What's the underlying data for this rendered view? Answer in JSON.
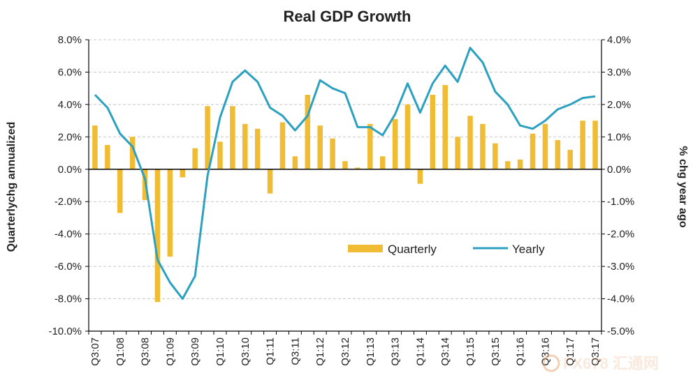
{
  "chart_data": {
    "type": "bar+line",
    "title": "Real GDP Growth",
    "ylabel_left": "Quarterlychg annualized",
    "ylabel_right": "% chg year ago",
    "ylim_left": [
      -10,
      8
    ],
    "ylim_right": [
      -5,
      4
    ],
    "yticks_left": [
      "8.0%",
      "6.0%",
      "4.0%",
      "2.0%",
      "0.0%",
      "-2.0%",
      "-4.0%",
      "-6.0%",
      "-8.0%",
      "-10.0%"
    ],
    "yticks_right": [
      "4.0%",
      "3.0%",
      "2.0%",
      "1.0%",
      "0.0%",
      "-1.0%",
      "-2.0%",
      "-3.0%",
      "-4.0%",
      "-5.0%"
    ],
    "x_tick_labels": [
      "Q3:07",
      "Q1:08",
      "Q3:08",
      "Q1:09",
      "Q3:09",
      "Q1:10",
      "Q3:10",
      "Q1:11",
      "Q3:11",
      "Q1:12",
      "Q3:12",
      "Q1:13",
      "Q3:13",
      "Q1:14",
      "Q3:14",
      "Q1:15",
      "Q3:15",
      "Q1:16",
      "Q3:16",
      "Q1:17",
      "Q3:17"
    ],
    "categories": [
      "Q3:07",
      "Q4:07",
      "Q1:08",
      "Q2:08",
      "Q3:08",
      "Q4:08",
      "Q1:09",
      "Q2:09",
      "Q3:09",
      "Q4:09",
      "Q1:10",
      "Q2:10",
      "Q3:10",
      "Q4:10",
      "Q1:11",
      "Q2:11",
      "Q3:11",
      "Q4:11",
      "Q1:12",
      "Q2:12",
      "Q3:12",
      "Q4:12",
      "Q1:13",
      "Q2:13",
      "Q3:13",
      "Q4:13",
      "Q1:14",
      "Q2:14",
      "Q3:14",
      "Q4:14",
      "Q1:15",
      "Q2:15",
      "Q3:15",
      "Q4:15",
      "Q1:16",
      "Q2:16",
      "Q3:16",
      "Q4:16",
      "Q1:17",
      "Q2:17",
      "Q3:17"
    ],
    "series": [
      {
        "name": "Quarterly",
        "type": "bar",
        "axis": "left",
        "color": "#f0bc33",
        "values": [
          2.7,
          1.5,
          -2.7,
          2.0,
          -1.9,
          -8.2,
          -5.4,
          -0.5,
          1.3,
          3.9,
          1.7,
          3.9,
          2.8,
          2.5,
          -1.5,
          2.9,
          0.8,
          4.6,
          2.7,
          1.9,
          0.5,
          0.1,
          2.8,
          0.8,
          3.1,
          4.0,
          -0.9,
          4.6,
          5.2,
          2.0,
          3.3,
          2.8,
          1.6,
          0.5,
          0.6,
          2.2,
          2.8,
          1.8,
          1.2,
          3.0,
          3.0
        ]
      },
      {
        "name": "Yearly",
        "type": "line",
        "axis": "right",
        "color": "#2ba0c0",
        "values": [
          2.3,
          1.9,
          1.1,
          0.7,
          -0.3,
          -2.8,
          -3.5,
          -4.0,
          -3.3,
          -0.2,
          1.6,
          2.7,
          3.05,
          2.7,
          1.9,
          1.65,
          1.2,
          1.65,
          2.75,
          2.5,
          2.35,
          1.3,
          1.3,
          1.05,
          1.7,
          2.65,
          1.75,
          2.65,
          3.2,
          2.7,
          3.75,
          3.3,
          2.4,
          2.0,
          1.35,
          1.25,
          1.5,
          1.85,
          2.0,
          2.2,
          2.25
        ]
      }
    ],
    "legend": {
      "position": "center-right",
      "items": [
        "Quarterly",
        "Yearly"
      ]
    },
    "grid": {
      "horizontal": true,
      "vertical": false,
      "style": "dashed"
    }
  },
  "watermark": {
    "text": "FX678 汇通网"
  }
}
